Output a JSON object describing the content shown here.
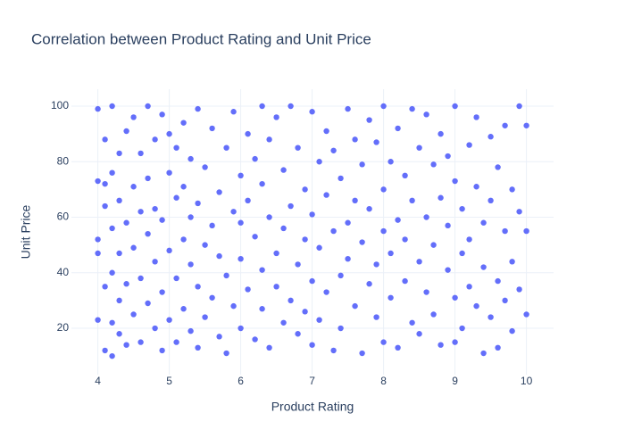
{
  "chart_data": {
    "type": "scatter",
    "title": "Correlation between Product Rating and Unit Price",
    "x_label": "Product Rating",
    "y_label": "Unit Price",
    "color": "#636efa",
    "grid": true,
    "xlim": [
      3.63,
      10.38
    ],
    "ylim": [
      3.3,
      106.1
    ],
    "xticks": [
      4,
      5,
      6,
      7,
      8,
      9,
      10
    ],
    "yticks": [
      20,
      40,
      60,
      80,
      100
    ],
    "x": [
      4.0,
      4.0,
      4.0,
      4.0,
      4.0,
      4.1,
      4.1,
      4.1,
      4.1,
      4.1,
      4.2,
      4.2,
      4.2,
      4.2,
      4.2,
      4.2,
      4.3,
      4.3,
      4.3,
      4.3,
      4.3,
      4.4,
      4.4,
      4.4,
      4.4,
      4.5,
      4.5,
      4.5,
      4.5,
      4.6,
      4.6,
      4.6,
      4.6,
      4.7,
      4.7,
      4.7,
      4.7,
      4.8,
      4.8,
      4.8,
      4.8,
      4.9,
      4.9,
      4.9,
      4.9,
      5.0,
      5.0,
      5.0,
      5.0,
      5.1,
      5.1,
      5.1,
      5.1,
      5.2,
      5.2,
      5.2,
      5.2,
      5.3,
      5.3,
      5.3,
      5.3,
      5.4,
      5.4,
      5.4,
      5.4,
      5.5,
      5.5,
      5.5,
      5.6,
      5.6,
      5.6,
      5.7,
      5.7,
      5.7,
      5.8,
      5.8,
      5.8,
      5.9,
      5.9,
      5.9,
      6.0,
      6.0,
      6.0,
      6.0,
      6.1,
      6.1,
      6.1,
      6.2,
      6.2,
      6.2,
      6.3,
      6.3,
      6.3,
      6.3,
      6.4,
      6.4,
      6.4,
      6.5,
      6.5,
      6.5,
      6.6,
      6.6,
      6.6,
      6.7,
      6.7,
      6.7,
      6.8,
      6.8,
      6.8,
      6.9,
      6.9,
      6.9,
      7.0,
      7.0,
      7.0,
      7.0,
      7.1,
      7.1,
      7.1,
      7.2,
      7.2,
      7.2,
      7.3,
      7.3,
      7.3,
      7.4,
      7.4,
      7.4,
      7.5,
      7.5,
      7.5,
      7.6,
      7.6,
      7.6,
      7.7,
      7.7,
      7.7,
      7.8,
      7.8,
      7.8,
      7.9,
      7.9,
      7.9,
      8.0,
      8.0,
      8.0,
      8.0,
      8.1,
      8.1,
      8.1,
      8.2,
      8.2,
      8.2,
      8.3,
      8.3,
      8.3,
      8.4,
      8.4,
      8.4,
      8.5,
      8.5,
      8.5,
      8.6,
      8.6,
      8.6,
      8.7,
      8.7,
      8.7,
      8.8,
      8.8,
      8.8,
      8.9,
      8.9,
      8.9,
      9.0,
      9.0,
      9.0,
      9.0,
      9.1,
      9.1,
      9.1,
      9.2,
      9.2,
      9.2,
      9.3,
      9.3,
      9.3,
      9.4,
      9.4,
      9.4,
      9.5,
      9.5,
      9.5,
      9.6,
      9.6,
      9.6,
      9.7,
      9.7,
      9.7,
      9.8,
      9.8,
      9.8,
      9.9,
      9.9,
      9.9,
      10.0,
      10.0,
      10.0
    ],
    "y": [
      99,
      73,
      52,
      47,
      23,
      12,
      35,
      64,
      88,
      72,
      100,
      22,
      40,
      56,
      76,
      10,
      83,
      30,
      18,
      66,
      47,
      14,
      91,
      58,
      36,
      96,
      71,
      25,
      49,
      62,
      15,
      83,
      38,
      100,
      54,
      29,
      74,
      88,
      20,
      44,
      63,
      33,
      97,
      59,
      12,
      76,
      48,
      23,
      90,
      15,
      67,
      38,
      85,
      94,
      52,
      27,
      71,
      43,
      81,
      19,
      60,
      99,
      35,
      65,
      13,
      78,
      50,
      24,
      57,
      92,
      31,
      69,
      17,
      46,
      85,
      39,
      11,
      98,
      62,
      28,
      58,
      45,
      20,
      75,
      90,
      34,
      66,
      16,
      53,
      81,
      100,
      41,
      72,
      27,
      60,
      13,
      88,
      96,
      47,
      35,
      77,
      22,
      56,
      100,
      64,
      30,
      43,
      85,
      18,
      70,
      26,
      52,
      98,
      37,
      61,
      14,
      80,
      49,
      23,
      91,
      68,
      33,
      55,
      12,
      84,
      39,
      74,
      20,
      99,
      58,
      45,
      28,
      88,
      66,
      11,
      51,
      79,
      95,
      36,
      63,
      43,
      87,
      24,
      100,
      70,
      15,
      55,
      31,
      80,
      47,
      59,
      13,
      92,
      75,
      37,
      52,
      99,
      22,
      66,
      44,
      85,
      18,
      60,
      33,
      97,
      79,
      50,
      25,
      14,
      67,
      90,
      41,
      82,
      57,
      100,
      31,
      73,
      15,
      63,
      47,
      20,
      86,
      52,
      35,
      71,
      28,
      96,
      58,
      11,
      42,
      89,
      66,
      24,
      37,
      78,
      13,
      55,
      93,
      30,
      70,
      44,
      19,
      100,
      62,
      34,
      93,
      55,
      25
    ]
  }
}
